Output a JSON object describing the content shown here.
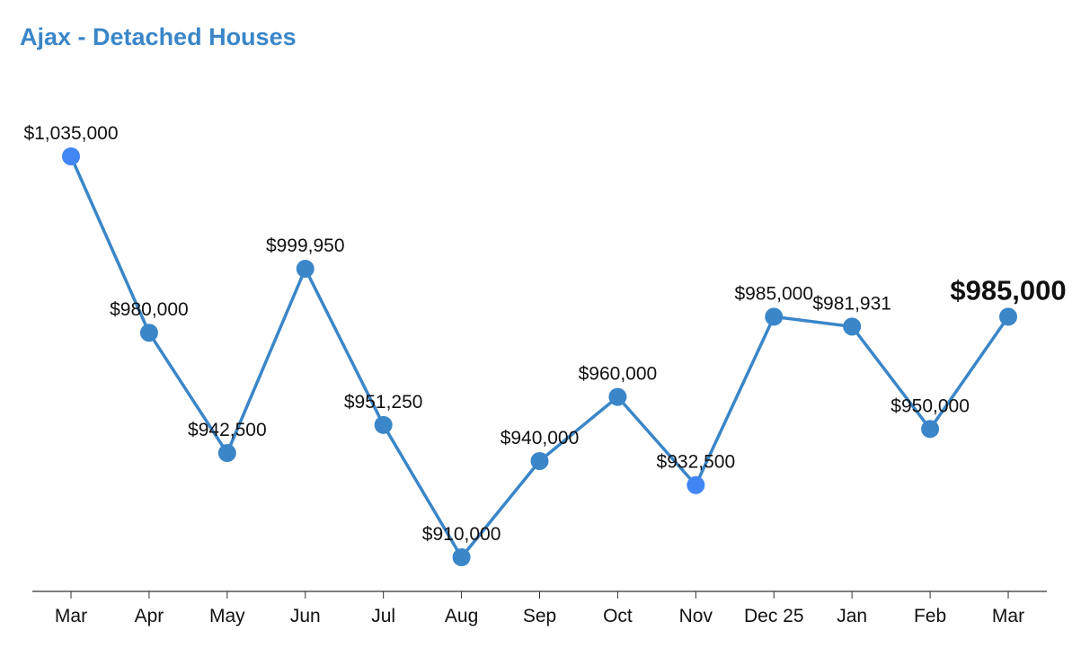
{
  "colors": {
    "title": "#3a86c8",
    "line": "#3a86c8",
    "point": "#3a86c8",
    "point_alt": "#4285f4",
    "highlight": "#34a853",
    "axis": "#333333"
  },
  "chart_data": {
    "type": "line",
    "title": "Ajax - Detached Houses",
    "xlabel": "",
    "ylabel": "",
    "grid": false,
    "categories": [
      "Mar",
      "Apr",
      "May",
      "Jun",
      "Jul",
      "Aug",
      "Sep",
      "Oct",
      "Nov",
      "Dec 25",
      "Jan",
      "Feb",
      "Mar"
    ],
    "values": [
      1035000,
      980000,
      942500,
      999950,
      951250,
      910000,
      940000,
      960000,
      932500,
      985000,
      981931,
      950000,
      985000
    ],
    "labels": [
      "$1,035,000",
      "$980,000",
      "$942,500",
      "$999,950",
      "$951,250",
      "$910,000",
      "$940,000",
      "$960,000",
      "$932,500",
      "$985,000",
      "$981,931",
      "$950,000",
      "$985,000"
    ],
    "alt_points": [
      0,
      8
    ],
    "highlight_index": 12
  }
}
